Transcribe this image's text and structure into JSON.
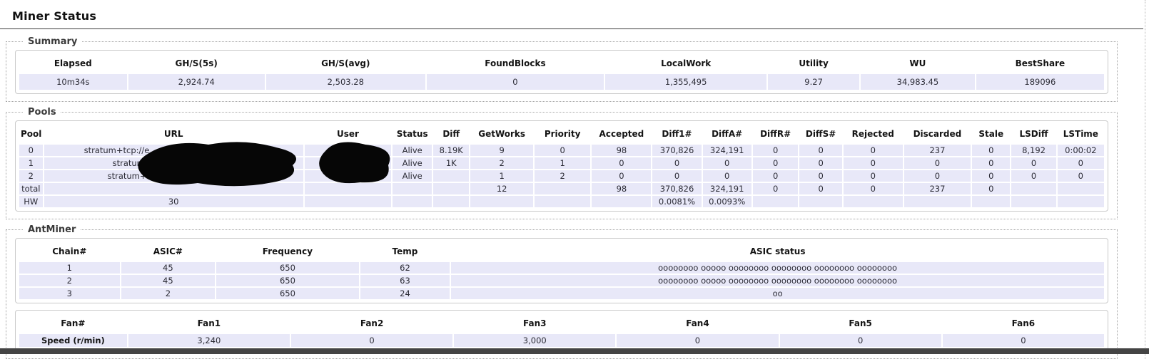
{
  "page": {
    "title": "Miner Status"
  },
  "summary": {
    "legend": "Summary",
    "columns": [
      "Elapsed",
      "GH/S(5s)",
      "GH/S(avg)",
      "FoundBlocks",
      "LocalWork",
      "Utility",
      "WU",
      "BestShare"
    ],
    "rows": [
      [
        "10m34s",
        "2,924.74",
        "2,503.28",
        "0",
        "1,355,495",
        "9.27",
        "34,983.45",
        "189096"
      ]
    ]
  },
  "pools": {
    "legend": "Pools",
    "columns": [
      "Pool",
      "URL",
      "User",
      "Status",
      "Diff",
      "GetWorks",
      "Priority",
      "Accepted",
      "Diff1#",
      "DiffA#",
      "DiffR#",
      "DiffS#",
      "Rejected",
      "Discarded",
      "Stale",
      "LSDiff",
      "LSTime"
    ],
    "rows": [
      [
        "0",
        "stratum+tcp://e",
        "",
        "Alive",
        "8.19K",
        "9",
        "0",
        "98",
        "370,826",
        "324,191",
        "0",
        "0",
        "0",
        "237",
        "0",
        "8,192",
        "0:00:02"
      ],
      [
        "1",
        "stratum+t",
        "",
        "Alive",
        "1K",
        "2",
        "1",
        "0",
        "0",
        "0",
        "0",
        "0",
        "0",
        "0",
        "0",
        "0",
        "0"
      ],
      [
        "2",
        "stratum+tcp",
        "",
        "Alive",
        "",
        "1",
        "2",
        "0",
        "0",
        "0",
        "0",
        "0",
        "0",
        "0",
        "0",
        "0",
        "0"
      ],
      [
        "total",
        "",
        "",
        "",
        "",
        "12",
        "",
        "98",
        "370,826",
        "324,191",
        "0",
        "0",
        "0",
        "237",
        "0",
        "",
        ""
      ],
      [
        "HW",
        "30",
        "",
        "",
        "",
        "",
        "",
        "",
        "0.0081%",
        "0.0093%",
        "",
        "",
        "",
        "",
        "",
        "",
        ""
      ]
    ]
  },
  "antminer": {
    "legend": "AntMiner",
    "chains": {
      "columns": [
        "Chain#",
        "ASIC#",
        "Frequency",
        "Temp",
        "ASIC status"
      ],
      "rows": [
        [
          "1",
          "45",
          "650",
          "62",
          "oooooooo ooooo oooooooo oooooooo oooooooo oooooooo"
        ],
        [
          "2",
          "45",
          "650",
          "63",
          "oooooooo ooooo oooooooo oooooooo oooooooo oooooooo"
        ],
        [
          "3",
          "2",
          "650",
          "24",
          "oo"
        ]
      ]
    },
    "fans": {
      "columns": [
        "Fan#",
        "Fan1",
        "Fan2",
        "Fan3",
        "Fan4",
        "Fan5",
        "Fan6"
      ],
      "rows": [
        [
          "Speed (r/min)",
          "3,240",
          "0",
          "3,000",
          "0",
          "0",
          "0"
        ]
      ]
    }
  },
  "colors": {
    "row_background": "#e8e8f8",
    "table_border": "#c9c9c9",
    "fieldset_border": "#a6a6a6",
    "title_rule": "#3d3d3d",
    "footer_bar": "#444444",
    "redaction": "#060606"
  }
}
